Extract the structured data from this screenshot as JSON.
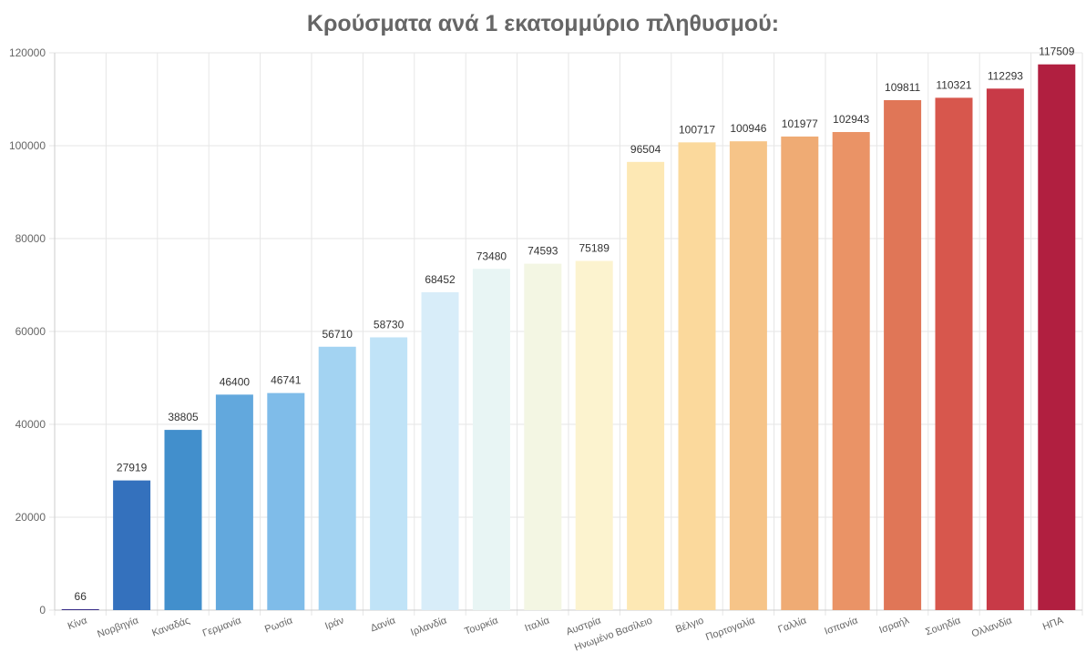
{
  "chart_data": {
    "type": "bar",
    "title": "Κρούσματα ανά 1 εκατομμύριο πληθυσμού:",
    "xlabel": "",
    "ylabel": "",
    "ylim": [
      0,
      120000
    ],
    "yticks": [
      0,
      20000,
      40000,
      60000,
      80000,
      100000,
      120000
    ],
    "grid": true,
    "categories": [
      "Κίνα",
      "Νορβηγία",
      "Καναδάς",
      "Γερμανία",
      "Ρωσία",
      "Ιράν",
      "Δανία",
      "Ιρλανδία",
      "Τουρκία",
      "Ιταλία",
      "Αυστρία",
      "Ηνωμένο Βασίλειο",
      "Βέλγιο",
      "Πορτογαλία",
      "Γαλλία",
      "Ισπανία",
      "Ισραήλ",
      "Σουηδία",
      "Ολλανδία",
      "ΗΠΑ"
    ],
    "values": [
      66,
      27919,
      38805,
      46400,
      46741,
      56710,
      58730,
      68452,
      73480,
      74593,
      75189,
      96504,
      100717,
      100946,
      101977,
      102943,
      109811,
      110321,
      112293,
      117509
    ],
    "colors": [
      "#3b2f8a",
      "#3471bd",
      "#428fcc",
      "#62a8dd",
      "#7fbce9",
      "#a3d3f2",
      "#c0e3f7",
      "#d8edf9",
      "#e8f5f4",
      "#f3f6e3",
      "#fcf3cf",
      "#fde8b4",
      "#fbd99c",
      "#f6c488",
      "#efab74",
      "#ea9366",
      "#e07657",
      "#d7574d",
      "#c83a47",
      "#b11f40"
    ]
  }
}
